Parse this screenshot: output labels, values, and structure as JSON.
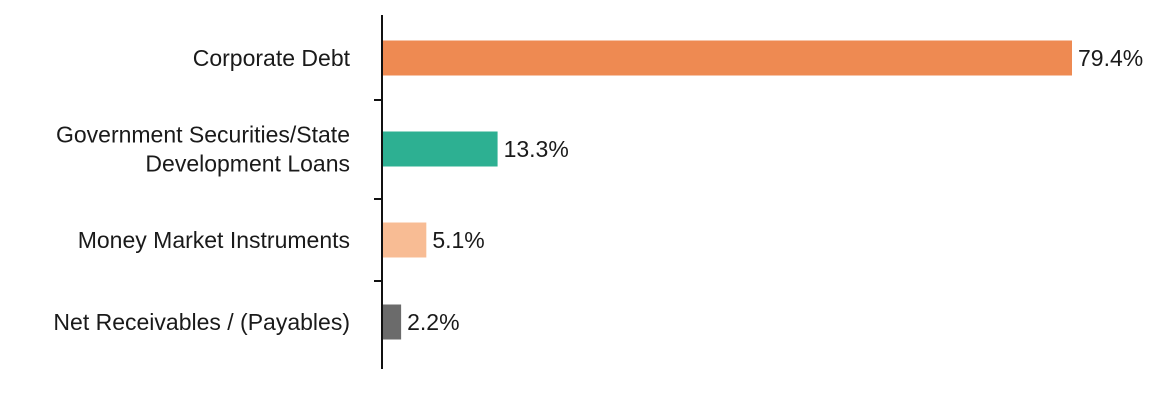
{
  "chart_data": {
    "type": "bar",
    "orientation": "horizontal",
    "title": "",
    "xlabel": "",
    "ylabel": "",
    "xlim": [
      0,
      80
    ],
    "grid": false,
    "legend": "none",
    "categories": [
      "Corporate Debt",
      "Government Securities/State Development Loans",
      "Money Market Instruments",
      "Net Receivables / (Payables)"
    ],
    "category_label_lines": [
      [
        "Corporate Debt"
      ],
      [
        "Government Securities/State",
        "Development Loans"
      ],
      [
        "Money Market Instruments"
      ],
      [
        "Net Receivables / (Payables)"
      ]
    ],
    "values": [
      79.4,
      13.3,
      5.1,
      2.2
    ],
    "value_labels": [
      "79.4%",
      "13.3%",
      "5.1%",
      "2.2%"
    ],
    "colors": [
      "#ee8a52",
      "#2db092",
      "#f8bc94",
      "#6b6b6b"
    ]
  }
}
